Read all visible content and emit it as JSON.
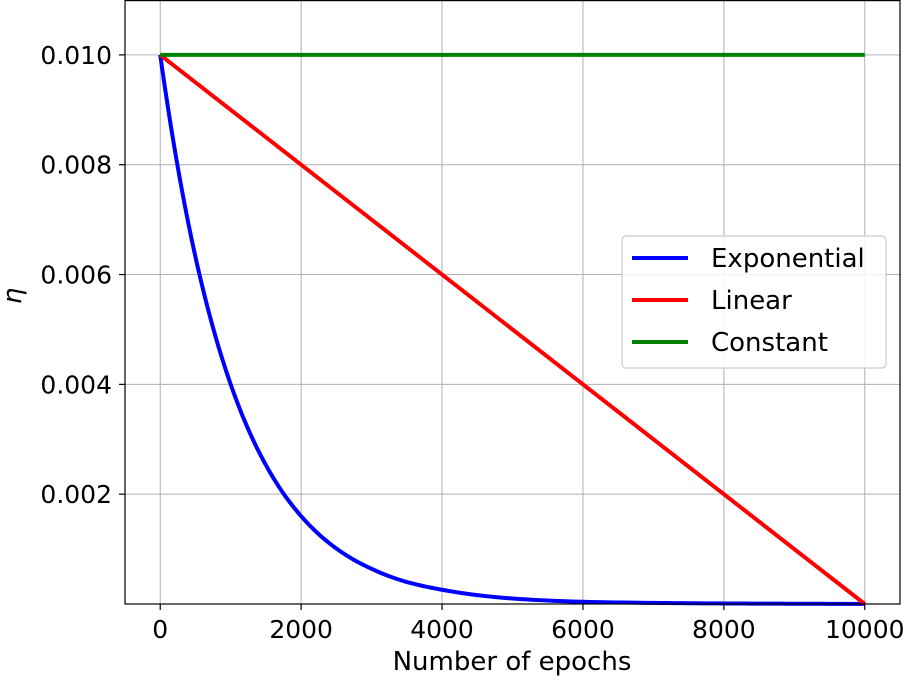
{
  "chart_data": {
    "type": "line",
    "title": "",
    "xlabel": "Number of epochs",
    "ylabel": "η",
    "xlim": [
      -500,
      10500
    ],
    "ylim": [
      0,
      0.011
    ],
    "grid": true,
    "legend_position": "center-right",
    "x_ticks": [
      0,
      2000,
      4000,
      6000,
      8000,
      10000
    ],
    "x_tick_labels": [
      "0",
      "2000",
      "4000",
      "6000",
      "8000",
      "10000"
    ],
    "y_ticks": [
      0.002,
      0.004,
      0.006,
      0.008,
      0.01
    ],
    "y_tick_labels": [
      "0.002",
      "0.004",
      "0.006",
      "0.008",
      "0.010"
    ],
    "series": [
      {
        "name": "Exponential",
        "color": "#0000ff",
        "x": [
          0,
          250,
          500,
          750,
          1000,
          1250,
          1500,
          1750,
          2000,
          2500,
          3000,
          3500,
          4000,
          5000,
          6000,
          7000,
          8000,
          9000,
          10000
        ],
        "y": [
          0.01,
          0.00795,
          0.00632,
          0.00503,
          0.004,
          0.00318,
          0.00253,
          0.00201,
          0.0016,
          0.00101,
          0.00064,
          0.0004,
          0.00026,
          0.0001,
          4e-05,
          2e-05,
          1e-05,
          5e-06,
          2e-06
        ]
      },
      {
        "name": "Linear",
        "color": "#ff0000",
        "x": [
          0,
          10000
        ],
        "y": [
          0.01,
          0.0
        ]
      },
      {
        "name": "Constant",
        "color": "#008000",
        "x": [
          0,
          10000
        ],
        "y": [
          0.01,
          0.01
        ]
      }
    ]
  }
}
